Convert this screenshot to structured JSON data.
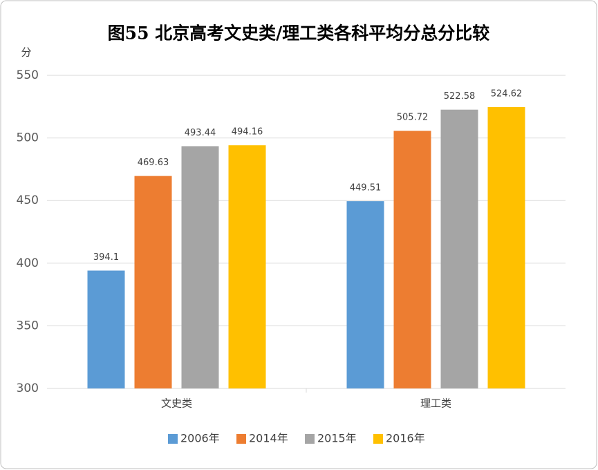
{
  "chart_data": {
    "type": "bar",
    "title": "图55 北京高考文史类/理工类各科平均分总分比较",
    "y_label": "分",
    "categories": [
      "文史类",
      "理工类"
    ],
    "series": [
      {
        "name": "2006年",
        "color": "#5b9bd5",
        "values": [
          394.1,
          449.51
        ]
      },
      {
        "name": "2014年",
        "color": "#ed7d31",
        "values": [
          469.63,
          505.72
        ]
      },
      {
        "name": "2015年",
        "color": "#a5a5a5",
        "values": [
          493.44,
          522.58
        ]
      },
      {
        "name": "2016年",
        "color": "#ffc000",
        "values": [
          494.16,
          524.62
        ]
      }
    ],
    "ylim": [
      300,
      550
    ],
    "yticks": [
      300,
      350,
      400,
      450,
      500,
      550
    ],
    "grid": true
  }
}
